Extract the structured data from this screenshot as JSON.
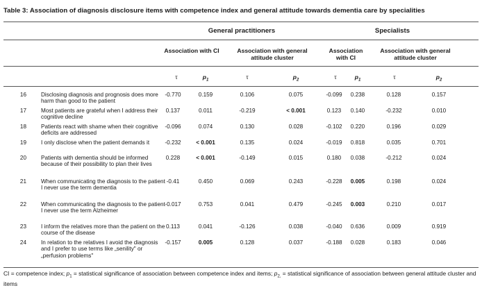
{
  "table": {
    "caption": "Table 3: Association of diagnosis disclosure items with competence index and general attitude towards dementia care by specialities",
    "groups": [
      {
        "label": "General practitioners"
      },
      {
        "label": "Specialists"
      }
    ],
    "subheaders": {
      "gp_ci": "Association with CI",
      "gp_att": "Association with general attitude cluster",
      "sp_ci": "Association with CI",
      "sp_att": "Association with general attitude cluster"
    },
    "symbols": {
      "tau": "τ",
      "p1": "p1",
      "p2": "p2"
    },
    "rows": [
      {
        "num": "16",
        "item": "Disclosing diagnosis and prognosis does more harm than good to the patient",
        "gp_tau1": "-0.770",
        "gp_p1": "0.159",
        "gp_tau2": "0.106",
        "gp_p2": "0.075",
        "sp_tau1": "-0.099",
        "sp_p1": "0.238",
        "sp_tau2": "0.128",
        "sp_p2": "0.157"
      },
      {
        "num": "17",
        "item": "Most patients are grateful when I address their cognitive decline",
        "gp_tau1": "0.137",
        "gp_p1": "0.011",
        "gp_tau2": "-0.219",
        "gp_p2": "< 0.001",
        "sp_tau1": "0.123",
        "sp_p1": "0.140",
        "sp_tau2": "-0.232",
        "sp_p2": "0.010"
      },
      {
        "num": "18",
        "item": "Patients react with shame when their cognitive deficits are addressed",
        "gp_tau1": "-0.096",
        "gp_p1": "0.074",
        "gp_tau2": "0.130",
        "gp_p2": "0.028",
        "sp_tau1": "-0.102",
        "sp_p1": "0.220",
        "sp_tau2": "0.196",
        "sp_p2": "0.029"
      },
      {
        "num": "19",
        "item": "I only disclose when the patient demands it",
        "gp_tau1": "-0.232",
        "gp_p1": "< 0.001",
        "gp_tau2": "0.135",
        "gp_p2": "0.024",
        "sp_tau1": "-0.019",
        "sp_p1": "0.818",
        "sp_tau2": "0.035",
        "sp_p2": "0.701"
      },
      {
        "num": "20",
        "item": "Patients with dementia should be informed because of their possibility to plan their lives",
        "gp_tau1": "0.228",
        "gp_p1": "< 0.001",
        "gp_tau2": "-0.149",
        "gp_p2": "0.015",
        "sp_tau1": "0.180",
        "sp_p1": "0.038",
        "sp_tau2": "-0.212",
        "sp_p2": "0.024"
      },
      {
        "num": "21",
        "item": "When communicating the diagnosis to the patient I never use the term dementia",
        "gp_tau1": "-0.41",
        "gp_p1": "0.450",
        "gp_tau2": "0.069",
        "gp_p2": "0.243",
        "sp_tau1": "-0.228",
        "sp_p1": "0.005",
        "sp_tau2": "0.198",
        "sp_p2": "0.024"
      },
      {
        "num": "22",
        "item": "When communicating the diagnosis to the patient I never use the term Alzheimer",
        "gp_tau1": "-0.017",
        "gp_p1": "0.753",
        "gp_tau2": "0.041",
        "gp_p2": "0.479",
        "sp_tau1": "-0.245",
        "sp_p1": "0.003",
        "sp_tau2": "0.210",
        "sp_p2": "0.017"
      },
      {
        "num": "23",
        "item": "I inform the relatives more than the patient on the course of the disease",
        "gp_tau1": "0.113",
        "gp_p1": "0.041",
        "gp_tau2": "-0.126",
        "gp_p2": "0.038",
        "sp_tau1": "-0.040",
        "sp_p1": "0.636",
        "sp_tau2": "0.009",
        "sp_p2": "0.919"
      },
      {
        "num": "24",
        "item": "In relation to the relatives I avoid the diagnosis and I prefer to use terms like „senility\" or „perfusion problems\"",
        "gp_tau1": "-0.157",
        "gp_p1": "0.005",
        "gp_tau2": "0.128",
        "gp_p2": "0.037",
        "sp_tau1": "-0.188",
        "sp_p1": "0.028",
        "sp_tau2": "0.183",
        "sp_p2": "0.046"
      }
    ],
    "bold_cells": [
      "1.gp_p2",
      "3.gp_p1",
      "4.gp_p1",
      "5.sp_p1",
      "6.sp_p1",
      "8.gp_p1"
    ],
    "footnote": "CI = competence index; p1 = statistical significance of association between competence index and items; p2, = statistical significance of association between general attitude cluster and items"
  }
}
